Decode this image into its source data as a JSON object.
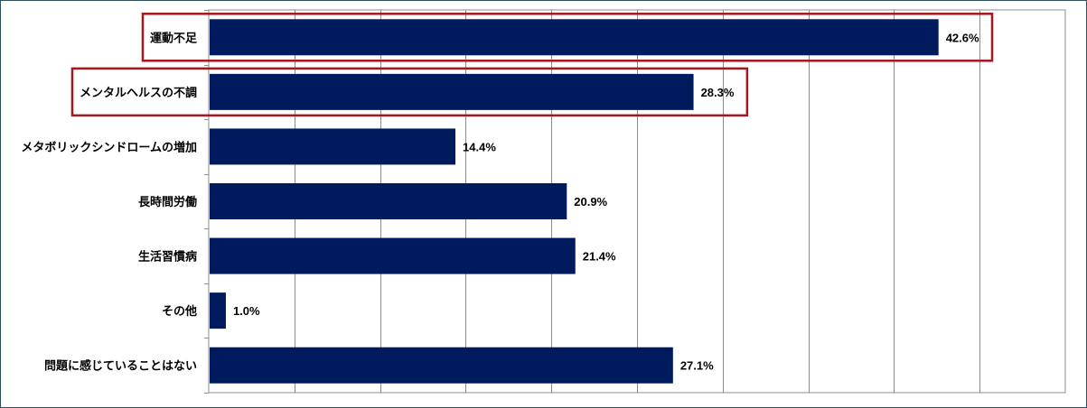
{
  "chart_data": {
    "type": "bar",
    "orientation": "horizontal",
    "categories": [
      "運動不足",
      "メンタルヘルスの不調",
      "メタボリックシンドロームの増加",
      "長時間労働",
      "生活習慣病",
      "その他",
      "問題に感じていることはない"
    ],
    "values": [
      42.6,
      28.3,
      14.4,
      20.9,
      21.4,
      1.0,
      27.1
    ],
    "value_labels": [
      "42.6%",
      "28.3%",
      "14.4%",
      "20.9%",
      "21.4%",
      "1.0%",
      "27.1%"
    ],
    "xlim": [
      0,
      50
    ],
    "grid_step": 5,
    "grid": true,
    "legend": "none",
    "highlighted_categories": [
      "運動不足",
      "メンタルヘルスの不調"
    ],
    "colors": {
      "bar": "#001a5e",
      "grid": "#8c8c8c",
      "highlight_box": "#a8161e",
      "frame": "#2f4f5f"
    }
  }
}
